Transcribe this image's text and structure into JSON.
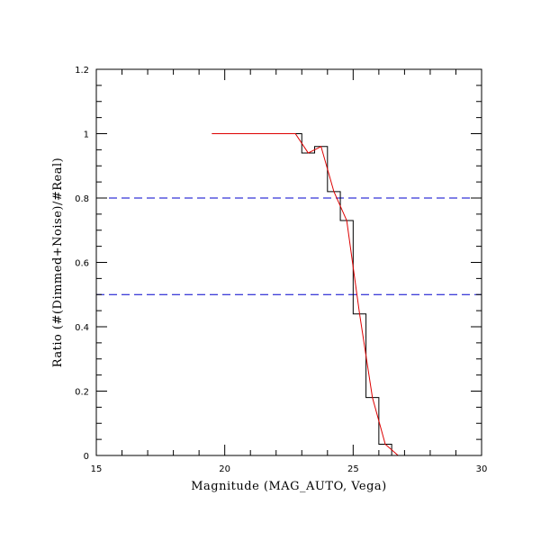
{
  "chart_data": {
    "type": "line",
    "title": "",
    "xlabel": "Magnitude (MAG_AUTO, Vega)",
    "ylabel": "Ratio (#(Dimmed+Noise)/#Real)",
    "xlim": [
      15,
      30
    ],
    "ylim": [
      0,
      1.2
    ],
    "x_ticks": [
      "15",
      "20",
      "25",
      "30"
    ],
    "y_ticks": [
      "0",
      "0.2",
      "0.4",
      "0.6",
      "0.8",
      "1",
      "1.2"
    ],
    "grid": false,
    "legend": "none",
    "reference_lines": [
      {
        "axis": "y",
        "value": 0.8,
        "color": "#0000cc",
        "style": "dashed"
      },
      {
        "axis": "y",
        "value": 0.5,
        "color": "#0000cc",
        "style": "dashed"
      }
    ],
    "series": [
      {
        "style": "step",
        "color": "#000000",
        "bin_edges": [
          19.5,
          20.0,
          20.5,
          21.0,
          21.5,
          22.0,
          22.5,
          23.0,
          23.5,
          24.0,
          24.5,
          25.0,
          25.5,
          26.0,
          26.5,
          27.0,
          27.5,
          28.0,
          28.5,
          29.0,
          29.5,
          30.0
        ],
        "values": [
          1.0,
          1.0,
          1.0,
          1.0,
          1.0,
          1.0,
          1.0,
          0.94,
          0.96,
          0.82,
          0.73,
          0.44,
          0.18,
          0.035,
          0.0,
          0.0,
          0.0,
          0.0,
          0.0,
          0.0,
          0.0
        ]
      },
      {
        "style": "line",
        "color": "#dd0000",
        "x": [
          19.5,
          22.75,
          23.25,
          23.75,
          24.25,
          24.75,
          25.25,
          25.75,
          26.25,
          26.75,
          30.0
        ],
        "y": [
          1.0,
          1.0,
          0.94,
          0.96,
          0.82,
          0.73,
          0.44,
          0.18,
          0.035,
          0.0,
          0.0
        ]
      }
    ]
  }
}
